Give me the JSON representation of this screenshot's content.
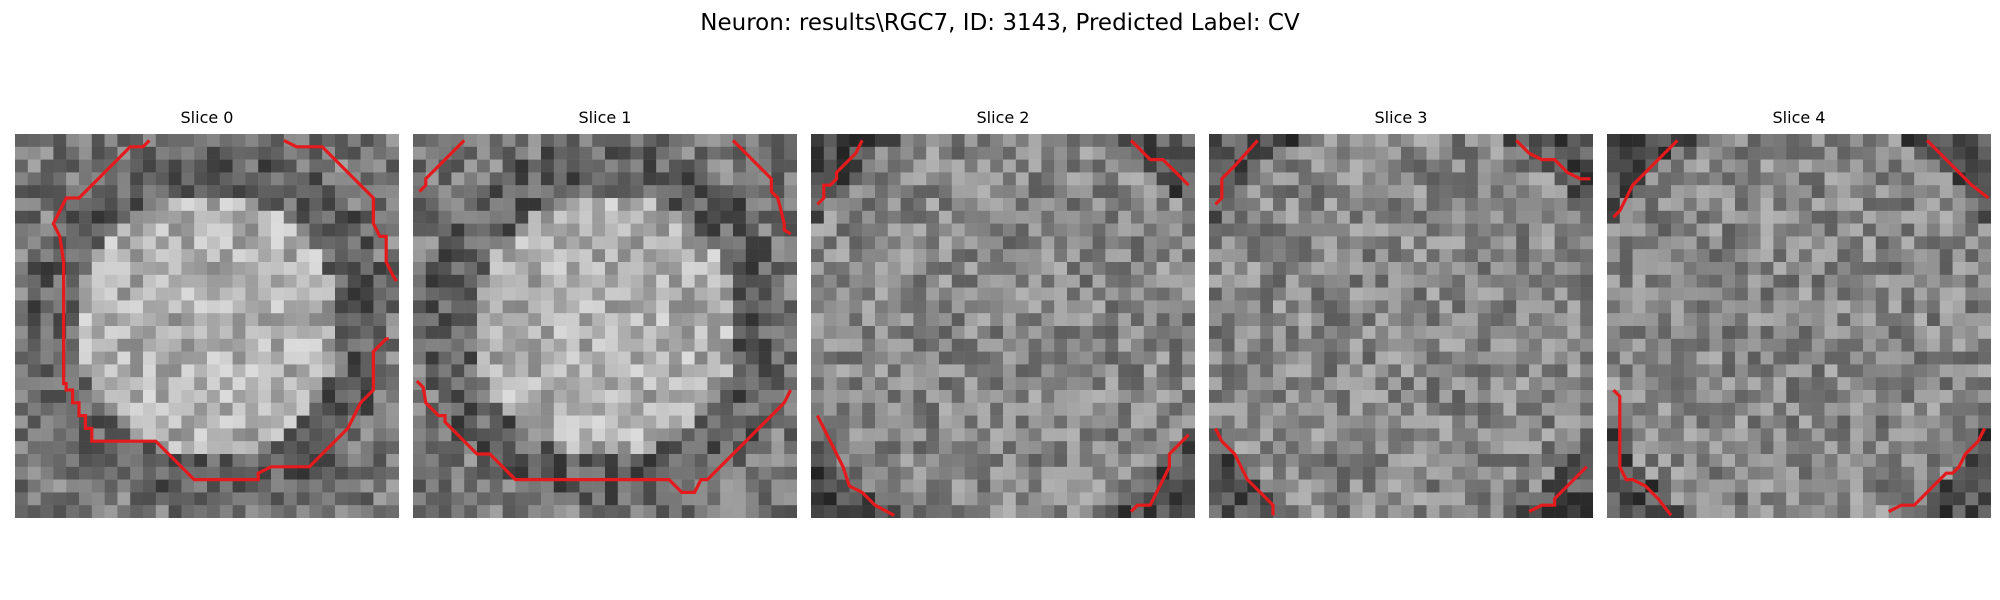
{
  "figure": {
    "title": "Neuron: results\\RGC7, ID: 3143, Predicted Label: CV"
  },
  "slices": [
    {
      "label": "Slice 0",
      "seed": 11,
      "brightness": "bright-center"
    },
    {
      "label": "Slice 1",
      "seed": 23,
      "brightness": "bright-center"
    },
    {
      "label": "Slice 2",
      "seed": 37,
      "brightness": "mid"
    },
    {
      "label": "Slice 3",
      "seed": 41,
      "brightness": "mid"
    },
    {
      "label": "Slice 4",
      "seed": 53,
      "brightness": "mid"
    }
  ],
  "colors": {
    "contour": "#e41a1c",
    "background": "#ffffff"
  }
}
